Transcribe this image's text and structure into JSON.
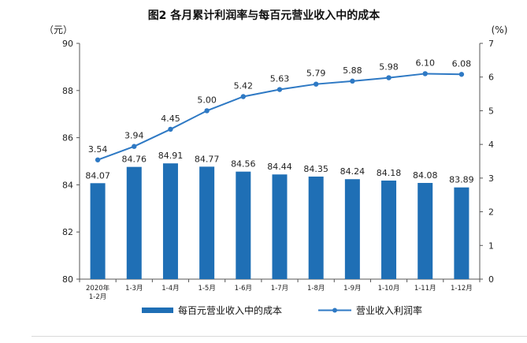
{
  "chart_data": {
    "type": "bar",
    "title": "图2 各月累计利润率与每百元营业收入中的成本",
    "left_unit": "（元）",
    "right_unit": "(%)",
    "categories": [
      "2020年\n1-2月",
      "1-3月",
      "1-4月",
      "1-5月",
      "1-6月",
      "1-7月",
      "1-8月",
      "1-9月",
      "1-10月",
      "1-11月",
      "1-12月"
    ],
    "series": [
      {
        "name": "每百元营业收入中的成本",
        "type": "bar",
        "axis": "left",
        "color": "#1f6fb5",
        "values": [
          84.07,
          84.76,
          84.91,
          84.77,
          84.56,
          84.44,
          84.35,
          84.24,
          84.18,
          84.08,
          83.89
        ],
        "labels": [
          "84.07",
          "84.76",
          "84.91",
          "84.77",
          "84.56",
          "84.44",
          "84.35",
          "84.24",
          "84.18",
          "84.08",
          "83.89"
        ]
      },
      {
        "name": "营业收入利润率",
        "type": "line",
        "axis": "right",
        "color": "#2e79c4",
        "values": [
          3.54,
          3.94,
          4.45,
          5.0,
          5.42,
          5.63,
          5.79,
          5.88,
          5.98,
          6.1,
          6.08
        ],
        "labels": [
          "3.54",
          "3.94",
          "4.45",
          "5.00",
          "5.42",
          "5.63",
          "5.79",
          "5.88",
          "5.98",
          "6.10",
          "6.08"
        ]
      }
    ],
    "y_left": {
      "min": 80,
      "max": 90,
      "ticks": [
        "80",
        "82",
        "84",
        "86",
        "88",
        "90"
      ]
    },
    "y_right": {
      "min": 0,
      "max": 7,
      "ticks": [
        "0",
        "1",
        "2",
        "3",
        "4",
        "5",
        "6",
        "7"
      ]
    },
    "grid": false,
    "legend_position": "bottom"
  }
}
